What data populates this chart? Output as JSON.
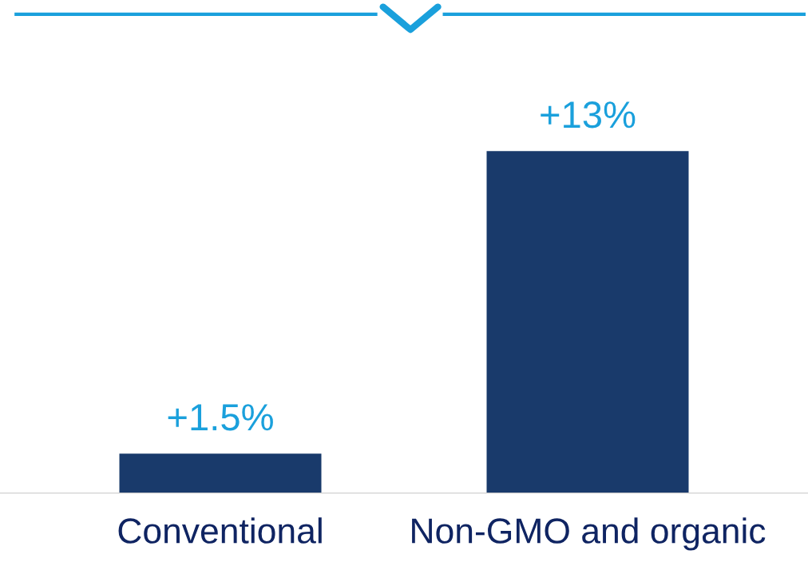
{
  "chart_data": {
    "type": "bar",
    "categories": [
      "Conventional",
      "Non-GMO and organic"
    ],
    "values": [
      1.5,
      13
    ],
    "value_labels": [
      "+1.5%",
      "+13%"
    ],
    "color": "#193a6b",
    "grid": false,
    "legend": false
  }
}
